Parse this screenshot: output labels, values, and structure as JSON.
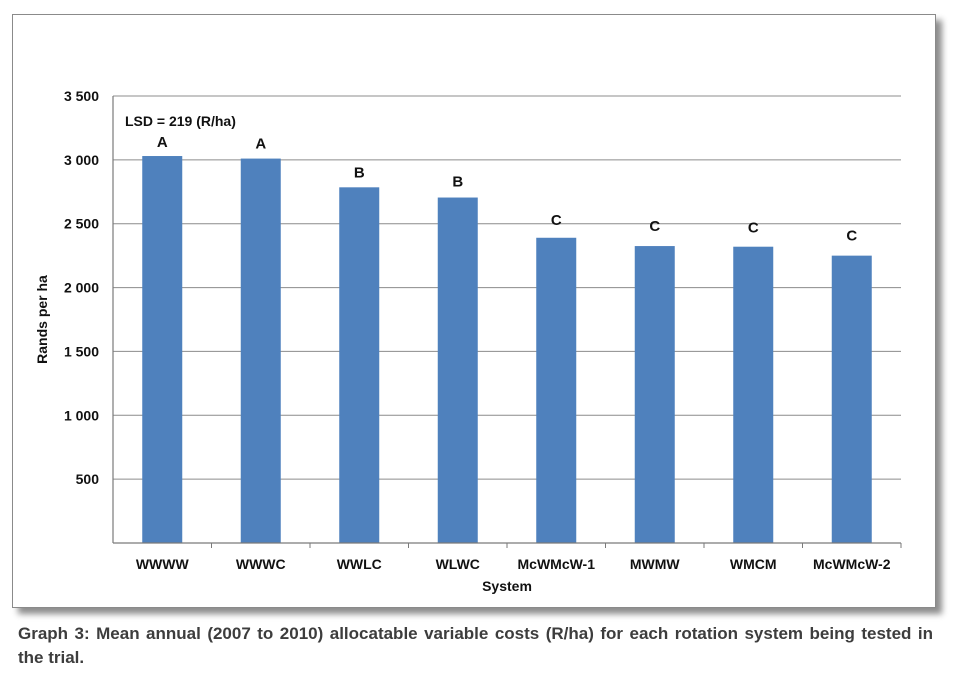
{
  "caption": "Graph 3: Mean annual (2007 to 2010) allocatable variable costs (R/ha) for each rotation system being tested in the trial.",
  "chart_data": {
    "type": "bar",
    "categories": [
      "WWWW",
      "WWWC",
      "WWLC",
      "WLWC",
      "McWMcW-1",
      "MWMW",
      "WMCM",
      "McWMcW-2"
    ],
    "values": [
      3030,
      3010,
      2785,
      2705,
      2390,
      2325,
      2320,
      2250
    ],
    "significance_letters": [
      "A",
      "A",
      "B",
      "B",
      "C",
      "C",
      "C",
      "C"
    ],
    "annotation": "LSD = 219 (R/ha)",
    "xlabel": "System",
    "ylabel": "Rands per ha",
    "ylim": [
      0,
      3500
    ],
    "yticks": [
      500,
      1000,
      1500,
      2000,
      2500,
      3000,
      3500
    ],
    "ytick_labels": [
      "500",
      "1 000",
      "1 500",
      "2 000",
      "2 500",
      "3 000",
      "3 500"
    ],
    "grid": true,
    "legend": "none",
    "bar_color": "#4f81bd",
    "grid_color": "#8c8c8c"
  }
}
